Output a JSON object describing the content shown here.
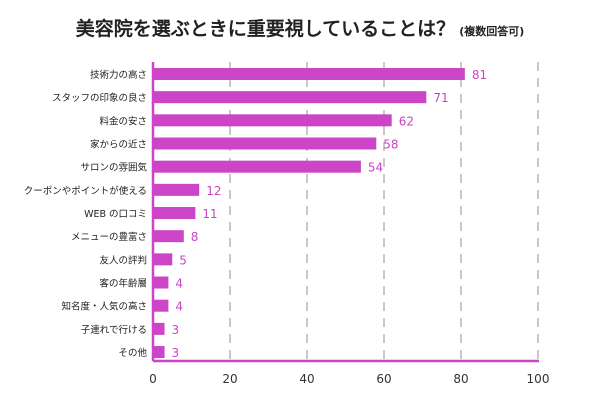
{
  "chart_data": {
    "type": "bar",
    "orientation": "horizontal",
    "title": "美容院を選ぶときに重要視していることは？",
    "subtitle": "(複数回答可)",
    "categories": [
      "技術力の高さ",
      "スタッフの印象の良さ",
      "料金の安さ",
      "家からの近さ",
      "サロンの雰囲気",
      "クーポンやポイントが使える",
      "WEB の口コミ",
      "メニューの豊富さ",
      "友人の評判",
      "客の年齢層",
      "知名度・人気の高さ",
      "子連れで行ける",
      "その他"
    ],
    "values": [
      81,
      71,
      62,
      58,
      54,
      12,
      11,
      8,
      5,
      4,
      4,
      3,
      3
    ],
    "xlim": [
      0,
      100
    ],
    "xticks": [
      0,
      20,
      40,
      60,
      80,
      100
    ],
    "xlabel": "",
    "ylabel": "",
    "grid": true,
    "bar_color": "#cc44c8",
    "label_color": "#cc44c8"
  }
}
